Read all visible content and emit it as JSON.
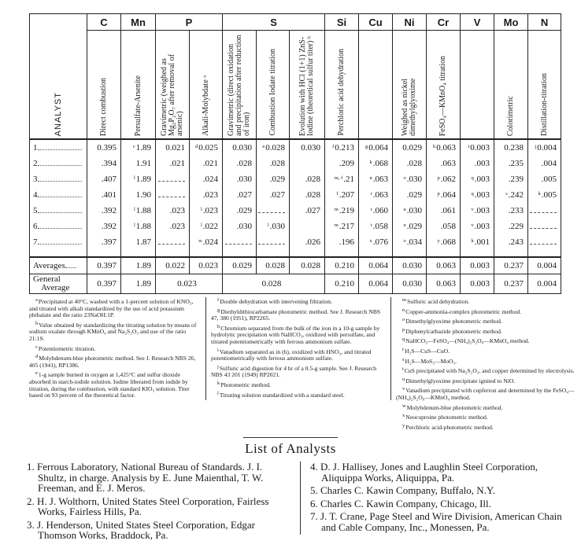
{
  "table": {
    "analyst_header": "ANALYST",
    "elements": [
      {
        "label": "C",
        "span": 1
      },
      {
        "label": "Mn",
        "span": 1
      },
      {
        "label": "P",
        "span": 2
      },
      {
        "label": "S",
        "span": 3
      },
      {
        "label": "Si",
        "span": 1
      },
      {
        "label": "Cu",
        "span": 1
      },
      {
        "label": "Ni",
        "span": 1
      },
      {
        "label": "Cr",
        "span": 1
      },
      {
        "label": "V",
        "span": 1
      },
      {
        "label": "Mo",
        "span": 1
      },
      {
        "label": "N",
        "span": 1
      }
    ],
    "methods": [
      "Direct combustion",
      "Persulfate-Arsenite",
      "Gravimetric (weighed as Mg₂P₂O₇ after removal of arsenic)",
      "Alkali-Molybdate ᵃ",
      "Gravimetric (direct oxidation and precipitation after reduction of iron)",
      "Combustion Iodate titration",
      "Evolution with HCl (1+1) ZnS-Iodine (theoretical sulfur titer) ᵇ",
      "Perchloric acid dehydration",
      "",
      "Weighed as nickel dimethylglyoxime",
      "FeSO₄—KMnO₄ titration",
      "",
      "Colorimetric",
      "Distillation-titration"
    ],
    "rows": [
      {
        "label": "1",
        "cells": [
          [
            "",
            "0.395"
          ],
          [
            "c",
            "1.89"
          ],
          [
            "",
            "0.021"
          ],
          [
            "d",
            "0.025"
          ],
          [
            "",
            "0.030"
          ],
          [
            "e",
            "0.028"
          ],
          [
            "",
            "0.030"
          ],
          [
            "f",
            "0.213"
          ],
          [
            "g",
            "0.064"
          ],
          [
            "",
            "0.029"
          ],
          [
            "h",
            "0.063"
          ],
          [
            "i",
            "0.003"
          ],
          [
            "",
            "0.238"
          ],
          [
            "j",
            "0.004"
          ]
        ]
      },
      {
        "label": "2",
        "cells": [
          [
            "",
            ".394"
          ],
          [
            "",
            "1.91"
          ],
          [
            "",
            ".021"
          ],
          [
            "",
            ".021"
          ],
          [
            "",
            ".028"
          ],
          [
            "",
            ".028"
          ],
          [
            "",
            ""
          ],
          [
            "",
            ".209"
          ],
          [
            "k",
            ".068"
          ],
          [
            "",
            ".028"
          ],
          [
            "",
            ".063"
          ],
          [
            "",
            ".003"
          ],
          [
            "",
            ".235"
          ],
          [
            "",
            ".004"
          ]
        ]
      },
      {
        "label": "3",
        "cells": [
          [
            "",
            ".407"
          ],
          [
            "l",
            "1.89"
          ],
          [
            "",
            ""
          ],
          [
            "",
            ".024"
          ],
          [
            "",
            ".030"
          ],
          [
            "",
            ".029"
          ],
          [
            "",
            ".028"
          ],
          [
            "m, f",
            ".21"
          ],
          [
            "n",
            ".063"
          ],
          [
            "o",
            ".030"
          ],
          [
            "p",
            ".062"
          ],
          [
            "q",
            ".003"
          ],
          [
            "",
            ".239"
          ],
          [
            "",
            ".005"
          ]
        ]
      },
      {
        "label": "4",
        "cells": [
          [
            "",
            ".401"
          ],
          [
            "",
            "1.90"
          ],
          [
            "",
            ""
          ],
          [
            "",
            ".023"
          ],
          [
            "",
            ".027"
          ],
          [
            "",
            ".027"
          ],
          [
            "",
            ".028"
          ],
          [
            "f",
            ".207"
          ],
          [
            "r",
            ".063"
          ],
          [
            "",
            ".029"
          ],
          [
            "p",
            ".064"
          ],
          [
            "q",
            ".003"
          ],
          [
            "s",
            ".242"
          ],
          [
            "k",
            ".005"
          ]
        ]
      },
      {
        "label": "5",
        "cells": [
          [
            "",
            ".392"
          ],
          [
            "l",
            "1.88"
          ],
          [
            "",
            ".023"
          ],
          [
            "l",
            ".023"
          ],
          [
            "",
            ".029"
          ],
          [
            "",
            ""
          ],
          [
            "",
            ".027"
          ],
          [
            "m",
            ".219"
          ],
          [
            "t",
            ".060"
          ],
          [
            "u",
            ".030"
          ],
          [
            "",
            ".061"
          ],
          [
            "v",
            ".003"
          ],
          [
            "",
            ".233"
          ],
          [
            "",
            ""
          ]
        ]
      },
      {
        "label": "6",
        "cells": [
          [
            "",
            ".392"
          ],
          [
            "l",
            "1.88"
          ],
          [
            "",
            ".023"
          ],
          [
            "l",
            ".022"
          ],
          [
            "",
            ".030"
          ],
          [
            "l",
            ".030"
          ],
          [
            "",
            ""
          ],
          [
            "m",
            ".217"
          ],
          [
            "t",
            ".058"
          ],
          [
            "u",
            ".029"
          ],
          [
            "",
            ".058"
          ],
          [
            "v",
            ".003"
          ],
          [
            "",
            ".229"
          ],
          [
            "",
            ""
          ]
        ]
      },
      {
        "label": "7",
        "cells": [
          [
            "",
            ".397"
          ],
          [
            "",
            "1.87"
          ],
          [
            "",
            ""
          ],
          [
            "w",
            ".024"
          ],
          [
            "",
            ""
          ],
          [
            "",
            ""
          ],
          [
            "",
            ".026"
          ],
          [
            "",
            ".196"
          ],
          [
            "x",
            ".076"
          ],
          [
            "o",
            ".034"
          ],
          [
            "y",
            ".068"
          ],
          [
            "k",
            ".001"
          ],
          [
            "",
            ".243"
          ],
          [
            "",
            ""
          ]
        ]
      }
    ],
    "averages": {
      "label": "Averages",
      "values": [
        "0.397",
        "1.89",
        "0.022",
        "0.023",
        "0.029",
        "0.028",
        "0.028",
        "0.210",
        "0.064",
        "0.030",
        "0.063",
        "0.003",
        "0.237",
        "0.004"
      ]
    },
    "general_average": {
      "label_line1": "General",
      "label_line2": "Average",
      "values": [
        "0.397",
        "1.89",
        "0.023",
        "0.028",
        "0.210",
        "0.064",
        "0.030",
        "0.063",
        "0.003",
        "0.237",
        "0.004"
      ]
    }
  },
  "footnotes": {
    "col1": [
      [
        "a",
        "Precipitated at 40°C, washed with a 1-percent solution of KNO₃, and titrated with alkali standardized by the use of acid potassium phthalate and the ratio 23NaOH:1P."
      ],
      [
        "b",
        "Value obtained by standardizing the titrating solution by means of sodium oxalate through KMnO₄ and Na₂S₂O₃ and use of the ratio 21:1S."
      ],
      [
        "c",
        "Potentiometric titration."
      ],
      [
        "d",
        "Molybdenum-blue photometric method. See J. Research NBS 26, 405 (1941), RP1386."
      ],
      [
        "e",
        "1-g sample burned in oxygen at 1,425°C and sulfur dioxide absorbed in starch-iodide solution. Iodine liberated from iodide by titration, during the combustion, with standard KIO₃ solution. Titer based on 93 percent of the theoretical factor."
      ]
    ],
    "col2": [
      [
        "f",
        "Double dehydration with intervening filtration."
      ],
      [
        "g",
        "Diethyldithiocarbamate photometric method. See J. Research NBS 47, 380 (1951), RP2265."
      ],
      [
        "h",
        "Chromium separated from the bulk of the iron in a 10-g sample by hydrolytic precipitation with NaHCO₃, oxidized with persulfate, and titrated potentiometrically with ferrous ammonium sulfate."
      ],
      [
        "i",
        "Vanadium separated as in (h), oxidized with HNO₃, and titrated potentiometrically with ferrous ammonium sulfate."
      ],
      [
        "j",
        "Sulfuric acid digestion for 4 hr of a 0.5-g sample. See J. Research NBS 43 201 (1949) RP2021."
      ],
      [
        "k",
        "Photometric method."
      ],
      [
        "l",
        "Titrating solution standardized with a standard steel."
      ]
    ],
    "col3": [
      [
        "m",
        "Sulfuric acid dehydration."
      ],
      [
        "n",
        "Copper-ammonia-complex photometric method."
      ],
      [
        "o",
        "Dimethylglyoxime photometric method."
      ],
      [
        "p",
        "Diphenylcarbazide photometric method."
      ],
      [
        "q",
        "NaHCO₃—FeSO₄—(NH₄)₂S₂O₈—KMnO₄ method."
      ],
      [
        "r",
        "H₂S—CuS—CuO."
      ],
      [
        "s",
        "H₂S—MoS₃—MoO₃."
      ],
      [
        "t",
        "CuS precipitated with Na₂S₂O₃, and copper determined by electrolysis."
      ],
      [
        "u",
        "Dimethylglyoxime precipitate ignited to NiO."
      ],
      [
        "v",
        "Vanadium precipitated with cupferron and determined by the FeSO₄—(NH₄)₂S₂O₈—KMnO₄ method."
      ],
      [
        "w",
        "Molybdenum-blue photometric method."
      ],
      [
        "x",
        "Neocuproine photometric method."
      ],
      [
        "y",
        "Perchloric acid-photometric method."
      ]
    ]
  },
  "analysts": {
    "title": "List of Analysts",
    "left": [
      "1. Ferrous Laboratory, National Bureau of Standards. J. I. Shultz, in charge.  Analysis by E. June Maienthal, T. W. Freeman, and E. J. Meros.",
      "2. H. J. Wolthorn, United States Steel Corporation, Fairless Works, Fairless Hills, Pa.",
      "3. J. Henderson, United States Steel Corporation, Edgar Thomson Works, Braddock, Pa."
    ],
    "right": [
      "4. D. J. Hallisey, Jones and Laughlin Steel Corporation, Aliquippa Works, Aliquippa, Pa.",
      "5. Charles C. Kawin Company, Buffalo, N.Y.",
      "6. Charles C. Kawin Company, Chicago, Ill.",
      "7. J. T. Crane, Page Steel and Wire Division, American Chain and Cable Company, Inc., Monessen, Pa."
    ]
  }
}
